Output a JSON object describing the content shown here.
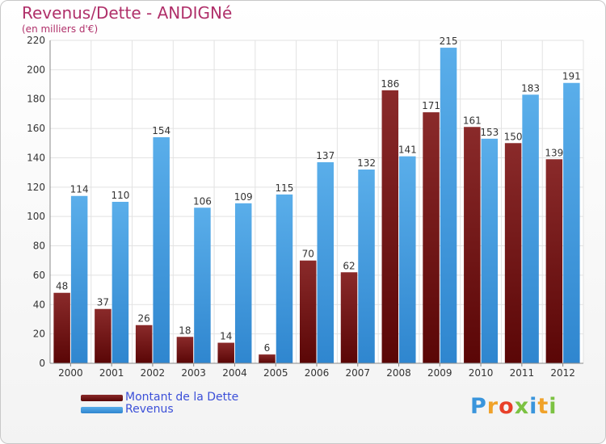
{
  "title": "Revenus/Dette - ANDIGNé",
  "subtitle": "(en milliers d'€)",
  "colors": {
    "series1": "#6b0b0b",
    "series2": "#3a95dc",
    "title": "#b0306a",
    "legend_text": "#3b4fd8"
  },
  "chart_data": {
    "type": "bar",
    "title": "Revenus/Dette - ANDIGNé",
    "subtitle": "(en milliers d'€)",
    "categories": [
      "2000",
      "2001",
      "2002",
      "2003",
      "2004",
      "2005",
      "2006",
      "2007",
      "2008",
      "2009",
      "2010",
      "2011",
      "2012"
    ],
    "series": [
      {
        "name": "Montant de la Dette",
        "values": [
          48,
          37,
          26,
          18,
          14,
          6,
          70,
          62,
          186,
          171,
          161,
          150,
          139
        ]
      },
      {
        "name": "Revenus",
        "values": [
          114,
          110,
          154,
          106,
          109,
          115,
          137,
          132,
          141,
          215,
          153,
          183,
          191
        ]
      }
    ],
    "ylim": [
      0,
      220
    ],
    "yticks": [
      0,
      20,
      40,
      60,
      80,
      100,
      120,
      140,
      160,
      180,
      200,
      220
    ],
    "grid": true,
    "legend_position": "bottom-left"
  },
  "legend": [
    {
      "label": "Montant de la Dette"
    },
    {
      "label": "Revenus"
    }
  ],
  "logo": {
    "text": "Proxiti",
    "letters": [
      "P",
      "r",
      "o",
      "x",
      "i",
      "t",
      "i"
    ],
    "letter_colors": [
      "#3a95dc",
      "#f0a22a",
      "#e8402a",
      "#7cc242",
      "#3a95dc",
      "#f0a22a",
      "#7cc242"
    ]
  }
}
